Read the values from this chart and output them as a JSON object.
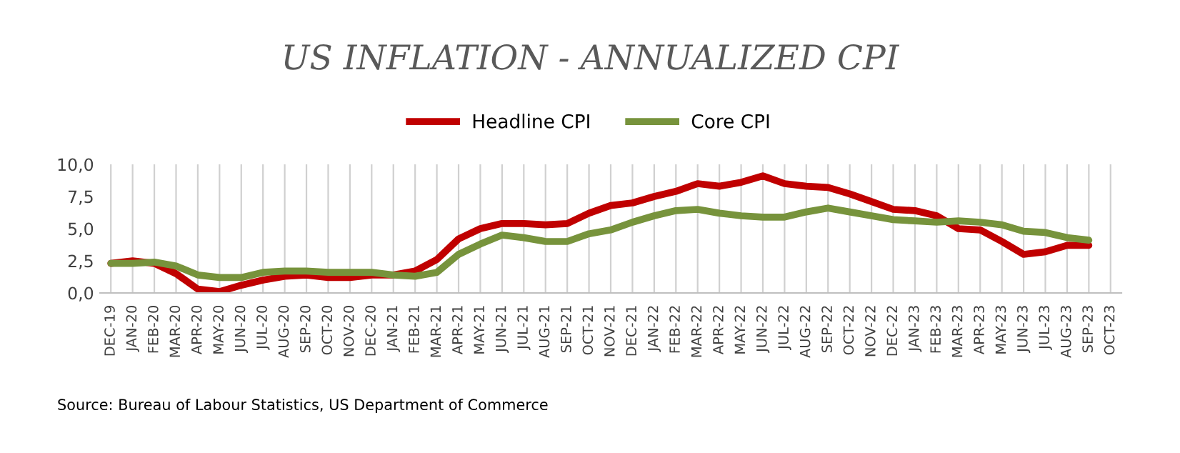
{
  "chart_data": {
    "type": "line",
    "title": "US INFLATION - ANNUALIZED CPI",
    "categories": [
      "DEC-19",
      "JAN-20",
      "FEB-20",
      "MAR-20",
      "APR-20",
      "MAY-20",
      "JUN-20",
      "JUL-20",
      "AUG-20",
      "SEP-20",
      "OCT-20",
      "NOV-20",
      "DEC-20",
      "JAN-21",
      "FEB-21",
      "MAR-21",
      "APR-21",
      "MAY-21",
      "JUN-21",
      "JUL-21",
      "AUG-21",
      "SEP-21",
      "OCT-21",
      "NOV-21",
      "DEC-21",
      "JAN-22",
      "FEB-22",
      "MAR-22",
      "APR-22",
      "MAY-22",
      "JUN-22",
      "JUL-22",
      "AUG-22",
      "SEP-22",
      "OCT-22",
      "NOV-22",
      "DEC-22",
      "JAN-23",
      "FEB-23",
      "MAR-23",
      "APR-23",
      "MAY-23",
      "JUN-23",
      "JUL-23",
      "AUG-23",
      "SEP-23",
      "OCT-23"
    ],
    "series": [
      {
        "name": "Headline CPI",
        "color": "#c00000",
        "values": [
          2.3,
          2.5,
          2.3,
          1.5,
          0.3,
          0.1,
          0.6,
          1.0,
          1.3,
          1.4,
          1.2,
          1.2,
          1.4,
          1.4,
          1.7,
          2.6,
          4.2,
          5.0,
          5.4,
          5.4,
          5.3,
          5.4,
          6.2,
          6.8,
          7.0,
          7.5,
          7.9,
          8.5,
          8.3,
          8.6,
          9.1,
          8.5,
          8.3,
          8.2,
          7.7,
          7.1,
          6.5,
          6.4,
          6.0,
          5.0,
          4.9,
          4.0,
          3.0,
          3.2,
          3.7,
          3.7,
          null
        ]
      },
      {
        "name": "Core CPI",
        "color": "#77933c",
        "values": [
          2.3,
          2.3,
          2.4,
          2.1,
          1.4,
          1.2,
          1.2,
          1.6,
          1.7,
          1.7,
          1.6,
          1.6,
          1.6,
          1.4,
          1.3,
          1.6,
          3.0,
          3.8,
          4.5,
          4.3,
          4.0,
          4.0,
          4.6,
          4.9,
          5.5,
          6.0,
          6.4,
          6.5,
          6.2,
          6.0,
          5.9,
          5.9,
          6.3,
          6.6,
          6.3,
          6.0,
          5.7,
          5.6,
          5.5,
          5.6,
          5.5,
          5.3,
          4.8,
          4.7,
          4.3,
          4.1,
          null
        ]
      }
    ],
    "ylim": [
      0,
      10
    ],
    "yticks": [
      {
        "value": 0,
        "label": "0,0"
      },
      {
        "value": 2.5,
        "label": "2,5"
      },
      {
        "value": 5,
        "label": "5,0"
      },
      {
        "value": 7.5,
        "label": "7,5"
      },
      {
        "value": 10,
        "label": "10,0"
      }
    ],
    "grid": "x",
    "legend": "top",
    "marker": "none",
    "line_style": "solid",
    "annotations": [
      "Source: Bureau of Labour Statistics, US Department of Commerce"
    ]
  }
}
